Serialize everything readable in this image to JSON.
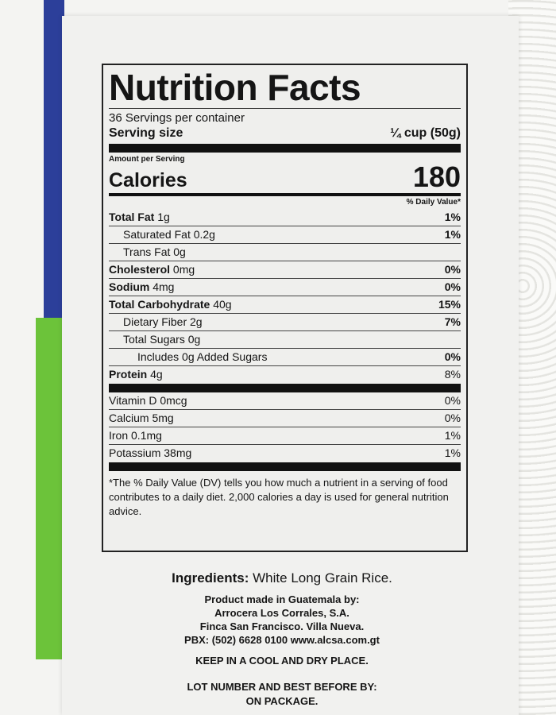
{
  "label": {
    "title": "Nutrition Facts",
    "servings": "36 Servings per container",
    "serving_size_label": "Serving size",
    "serving_size_value": "¼ cup (50g)",
    "amount_per_serving": "Amount per Serving",
    "calories_label": "Calories",
    "calories_value": "180",
    "dv_header": "% Daily Value*",
    "nutrients": [
      {
        "name": "Total Fat",
        "amount": "1g",
        "dv": "1%"
      },
      {
        "name": "Saturated Fat 0.2g",
        "amount": "",
        "dv": "1%"
      },
      {
        "name": "Trans Fat 0g",
        "amount": "",
        "dv": ""
      },
      {
        "name": "Cholesterol",
        "amount": "0mg",
        "dv": "0%"
      },
      {
        "name": "Sodium",
        "amount": "4mg",
        "dv": "0%"
      },
      {
        "name": "Total Carbohydrate",
        "amount": "40g",
        "dv": "15%"
      },
      {
        "name": "Dietary Fiber 2g",
        "amount": "",
        "dv": "7%"
      },
      {
        "name": "Total Sugars 0g",
        "amount": "",
        "dv": ""
      },
      {
        "name": "Includes 0g Added Sugars",
        "amount": "",
        "dv": "0%"
      },
      {
        "name": "Protein",
        "amount": "4g",
        "dv": "8%"
      }
    ],
    "vitamins": [
      {
        "name": "Vitamin D 0mcg",
        "dv": "0%"
      },
      {
        "name": "Calcium 5mg",
        "dv": "0%"
      },
      {
        "name": "Iron 0.1mg",
        "dv": "1%"
      },
      {
        "name": "Potassium 38mg",
        "dv": "1%"
      }
    ],
    "footnote": "*The % Daily Value (DV) tells you how much a nutrient in a serving of food contributes to a daily diet. 2,000 calories a day is used for general nutrition advice."
  },
  "ingredients": {
    "label": "Ingredients:",
    "value": "White Long Grain Rice."
  },
  "manufacturer": [
    "Product made in Guatemala by:",
    "Arrocera Los Corrales, S.A.",
    "Finca San Francisco. Villa Nueva.",
    "PBX: (502) 6628 0100 www.alcsa.com.gt"
  ],
  "storage": "KEEP IN A COOL AND DRY PLACE.",
  "lot": [
    "LOT NUMBER AND BEST BEFORE BY:",
    "ON PACKAGE."
  ],
  "colors": {
    "bag_blue": "#2c3f9a",
    "bag_green": "#6cc33a"
  }
}
